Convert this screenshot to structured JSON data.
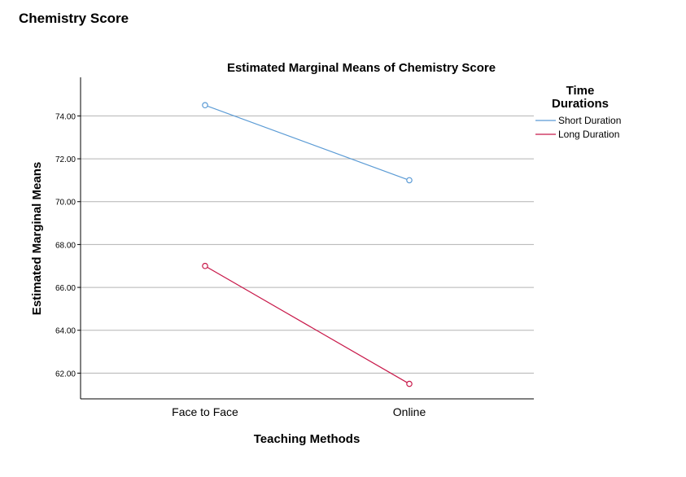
{
  "page": {
    "title": "Chemistry Score"
  },
  "chart_data": {
    "type": "line",
    "title": "Estimated Marginal Means of Chemistry Score",
    "xlabel": "Teaching Methods",
    "ylabel": "Estimated Marginal Means",
    "categories": [
      "Face to Face",
      "Online"
    ],
    "ylim": [
      60.8,
      75.8
    ],
    "yticks": [
      "62.00",
      "64.00",
      "66.00",
      "68.00",
      "70.00",
      "72.00",
      "74.00"
    ],
    "grid": true,
    "legend": {
      "title_lines": [
        "Time",
        "Durations"
      ],
      "placement": "right"
    },
    "series": [
      {
        "name": "Short Duration",
        "color": "#5b9bd5",
        "values": [
          74.5,
          71.0
        ]
      },
      {
        "name": "Long Duration",
        "color": "#c8194a",
        "values": [
          67.0,
          61.5
        ]
      }
    ]
  }
}
